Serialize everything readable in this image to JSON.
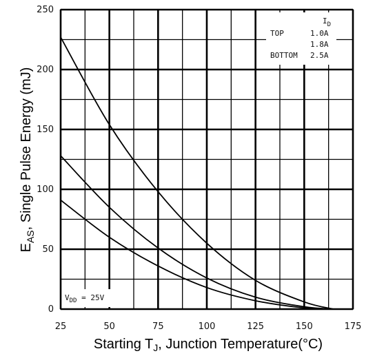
{
  "chart_data": {
    "type": "line",
    "xlabel_parts": [
      "Starting T",
      "J",
      ", Junction Temperature(°C)"
    ],
    "ylabel_parts": [
      "E",
      "AS",
      ", Single Pulse Energy (mJ)"
    ],
    "xlim": [
      25,
      175
    ],
    "ylim": [
      0,
      250
    ],
    "x_ticks": [
      "25",
      "50",
      "75",
      "100",
      "125",
      "150",
      "175"
    ],
    "y_ticks": [
      "0",
      "50",
      "100",
      "150",
      "200",
      "250"
    ],
    "grid": true,
    "legend": {
      "title": "ID",
      "title_main": "I",
      "title_sub": "D",
      "position": "top-right",
      "rows": [
        {
          "label": "TOP",
          "value": "1.0A"
        },
        {
          "label": "",
          "value": "1.8A"
        },
        {
          "label": "BOTTOM",
          "value": "2.5A"
        }
      ]
    },
    "annotation": "VDD = 25V",
    "annotation_parts": [
      "V",
      "DD",
      " = 25V"
    ],
    "series": [
      {
        "name": "1.0A",
        "x": [
          25,
          50,
          75,
          100,
          125,
          150,
          165
        ],
        "y": [
          227,
          154,
          98,
          55,
          24,
          6,
          0
        ]
      },
      {
        "name": "1.8A",
        "x": [
          25,
          50,
          75,
          100,
          125,
          150,
          165
        ],
        "y": [
          128,
          85,
          51,
          26,
          10,
          2,
          0
        ]
      },
      {
        "name": "2.5A",
        "x": [
          25,
          50,
          75,
          100,
          125,
          150,
          165
        ],
        "y": [
          91,
          60,
          36,
          18,
          7,
          1,
          0
        ]
      }
    ]
  }
}
